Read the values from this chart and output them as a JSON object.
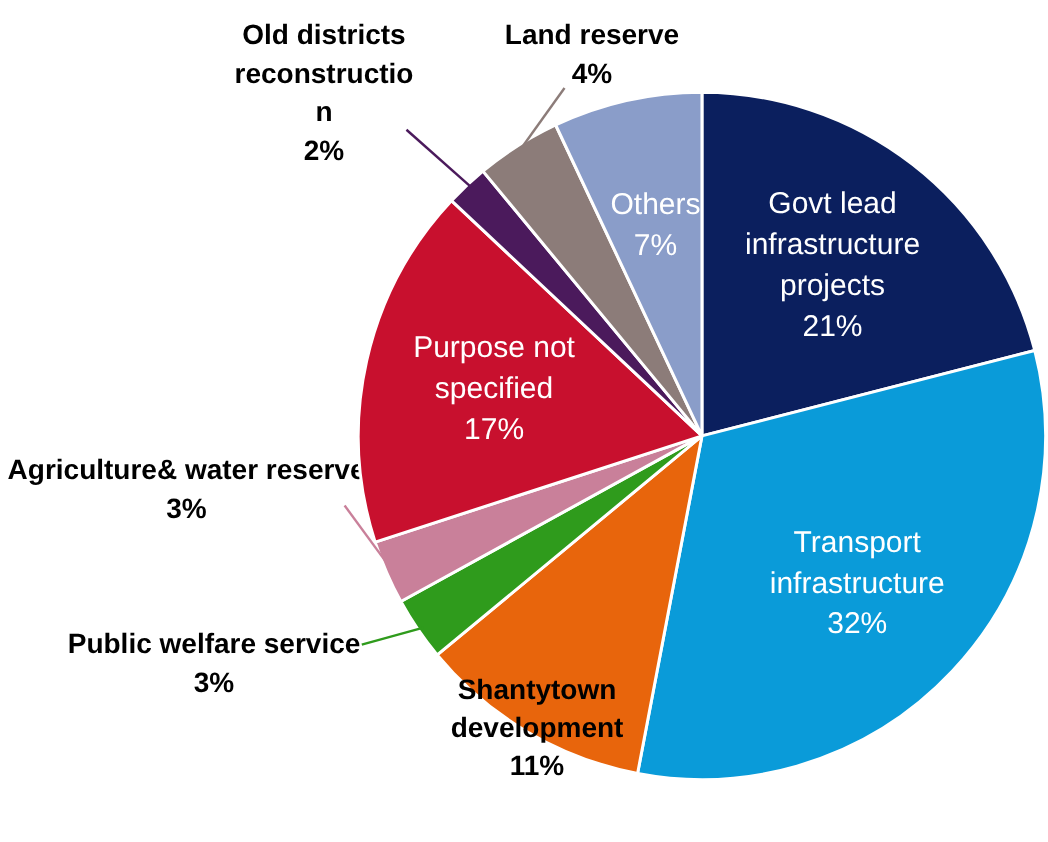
{
  "chart_data": {
    "type": "pie",
    "categories": [
      "Govt lead\ninfrastructure\nprojects",
      "Transport\ninfrastructure",
      "Shantytown\ndevelopment",
      "Public welfare service",
      "Agriculture& water reserve",
      "Purpose not\nspecified",
      "Old districts\nreconstructio\nn",
      "Land reserve",
      "Others"
    ],
    "values": [
      21,
      32,
      11,
      3,
      3,
      17,
      2,
      4,
      7
    ],
    "value_labels": [
      "21%",
      "32%",
      "11%",
      "3%",
      "3%",
      "17%",
      "2%",
      "4%",
      "7%"
    ],
    "colors": [
      "#0b1f5e",
      "#0a9bd9",
      "#e8650c",
      "#2f9b1c",
      "#c9809a",
      "#c8102e",
      "#4b1a5c",
      "#8c7c79",
      "#8a9dc9"
    ]
  }
}
